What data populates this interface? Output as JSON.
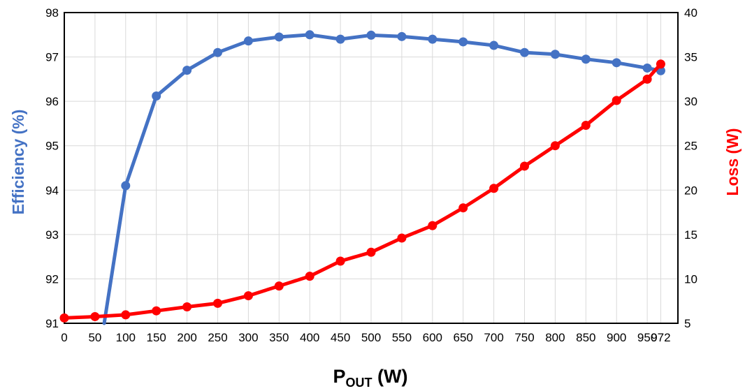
{
  "chart_data": {
    "type": "line",
    "x_ticks": [
      "0",
      "50",
      "100",
      "150",
      "200",
      "250",
      "300",
      "350",
      "400",
      "450",
      "500",
      "550",
      "600",
      "650",
      "700",
      "750",
      "800",
      "850",
      "900",
      "950",
      "972"
    ],
    "xlabel": {
      "main": "P",
      "subscript": "OUT",
      "suffix": " (W)"
    },
    "y_left": {
      "label": "Efficiency (%)",
      "range": [
        91,
        98
      ],
      "ticks": [
        "91",
        "92",
        "93",
        "94",
        "95",
        "96",
        "97",
        "98"
      ],
      "color": "#4472C4"
    },
    "y_right": {
      "label": "Loss (W)",
      "range": [
        5,
        40
      ],
      "ticks": [
        "5",
        "10",
        "15",
        "20",
        "25",
        "30",
        "35",
        "40"
      ],
      "color": "#FF0000"
    },
    "grid": true,
    "series": [
      {
        "name": "Efficiency (%)",
        "axis": "left",
        "color": "#4472C4",
        "points": [
          [
            65,
            91.0
          ],
          [
            100,
            94.1
          ],
          [
            150,
            96.12
          ],
          [
            200,
            96.7
          ],
          [
            250,
            97.1
          ],
          [
            300,
            97.36
          ],
          [
            350,
            97.45
          ],
          [
            400,
            97.5
          ],
          [
            450,
            97.4
          ],
          [
            500,
            97.49
          ],
          [
            550,
            97.46
          ],
          [
            600,
            97.4
          ],
          [
            650,
            97.34
          ],
          [
            700,
            97.26
          ],
          [
            750,
            97.1
          ],
          [
            800,
            97.06
          ],
          [
            850,
            96.95
          ],
          [
            900,
            96.87
          ],
          [
            950,
            96.75
          ],
          [
            972,
            96.69
          ]
        ]
      },
      {
        "name": "Loss (W)",
        "axis": "right",
        "color": "#FF0000",
        "points": [
          [
            0,
            5.6
          ],
          [
            50,
            5.75
          ],
          [
            100,
            5.95
          ],
          [
            150,
            6.4
          ],
          [
            200,
            6.85
          ],
          [
            250,
            7.25
          ],
          [
            300,
            8.1
          ],
          [
            350,
            9.2
          ],
          [
            400,
            10.3
          ],
          [
            450,
            12.0
          ],
          [
            500,
            13.0
          ],
          [
            550,
            14.6
          ],
          [
            600,
            16.0
          ],
          [
            650,
            18.0
          ],
          [
            700,
            20.2
          ],
          [
            750,
            22.7
          ],
          [
            800,
            25.0
          ],
          [
            850,
            27.3
          ],
          [
            900,
            30.1
          ],
          [
            950,
            32.5
          ],
          [
            972,
            34.2
          ]
        ]
      }
    ]
  }
}
